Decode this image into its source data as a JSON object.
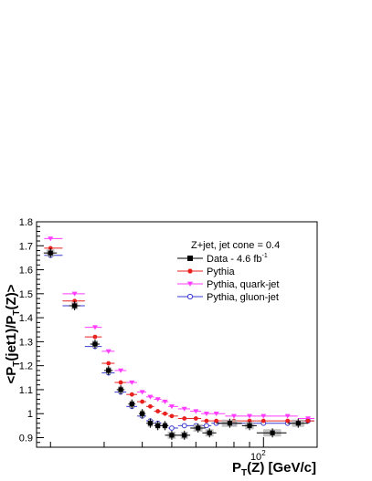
{
  "chart_data": {
    "type": "scatter",
    "xscale": "log",
    "xlim": [
      18,
      150
    ],
    "ylim": [
      0.86,
      1.8
    ],
    "xlabel": "P",
    "xlabel_sub": "T",
    "xlabel_rest": "(Z) [GeV/c]",
    "ylabel": "<P",
    "ylabel_sub1": "T",
    "ylabel_mid": "(jet1)/P",
    "ylabel_sub2": "T",
    "ylabel_rest": "(Z)>",
    "y_ticks": [
      0.9,
      1.0,
      1.1,
      1.2,
      1.3,
      1.4,
      1.5,
      1.6,
      1.7,
      1.8
    ],
    "y_tick_labels": [
      "0.9",
      "1",
      "1.1",
      "1.2",
      "1.3",
      "1.4",
      "1.5",
      "1.6",
      "1.7",
      "1.8"
    ],
    "x_major_ticks": [
      100
    ],
    "x_tick_label_base": "10",
    "x_tick_label_exp": "2",
    "x_minor_ticks": [
      20,
      30,
      40,
      50,
      60,
      70,
      80,
      90
    ],
    "legend": {
      "header": "Z+jet, jet cone = 0.4",
      "placement": "top-right",
      "entries": [
        {
          "label": "Data - 4.6 fb",
          "sup": "-1",
          "marker": "square",
          "color": "#000000"
        },
        {
          "label": "Pythia",
          "marker": "circle",
          "color": "#e8201e"
        },
        {
          "label": "Pythia, quark-jet",
          "marker": "triangle-down",
          "color": "#ff3cff"
        },
        {
          "label": "Pythia, gluon-jet",
          "marker": "open-circle",
          "color": "#3a3ad0"
        }
      ]
    },
    "series": [
      {
        "name": "Data - 4.6 fb-1",
        "x": [
          20,
          24,
          28,
          31,
          34,
          37,
          40,
          42.5,
          45,
          47.5,
          50,
          55,
          61,
          66.5,
          77.5,
          90,
          107,
          130
        ],
        "y": [
          1.67,
          1.45,
          1.29,
          1.18,
          1.1,
          1.04,
          1.0,
          0.96,
          0.95,
          0.95,
          0.91,
          0.91,
          0.94,
          0.92,
          0.96,
          0.95,
          0.92,
          0.96
        ],
        "xerr": [
          1,
          1,
          1,
          1,
          1,
          1,
          1,
          1.25,
          1.25,
          1.25,
          2.5,
          2.5,
          3.5,
          3.5,
          7.5,
          5,
          12,
          10
        ]
      },
      {
        "name": "Pythia",
        "x": [
          20,
          24,
          28,
          31,
          34,
          37,
          40,
          42.5,
          45,
          47.5,
          50,
          55,
          60,
          65,
          70,
          80,
          90,
          100,
          120,
          140
        ],
        "y": [
          1.69,
          1.47,
          1.32,
          1.21,
          1.13,
          1.08,
          1.05,
          1.03,
          1.01,
          1.0,
          0.99,
          0.98,
          0.98,
          0.97,
          0.97,
          0.97,
          0.97,
          0.97,
          0.97,
          0.97
        ]
      },
      {
        "name": "Pythia, quark-jet",
        "x": [
          20,
          24,
          28,
          31,
          34,
          37,
          40,
          42.5,
          45,
          47.5,
          50,
          55,
          60,
          65,
          70,
          80,
          90,
          100,
          120,
          140
        ],
        "y": [
          1.73,
          1.5,
          1.36,
          1.26,
          1.18,
          1.13,
          1.09,
          1.07,
          1.06,
          1.05,
          1.03,
          1.02,
          1.01,
          1.0,
          1.0,
          0.99,
          0.99,
          0.99,
          0.99,
          0.98
        ]
      },
      {
        "name": "Pythia, gluon-jet",
        "x": [
          20,
          24,
          28,
          31,
          34,
          37,
          40,
          42.5,
          45,
          47.5,
          50,
          55,
          60,
          65,
          70,
          80,
          90,
          100,
          120,
          140
        ],
        "y": [
          1.66,
          1.45,
          1.28,
          1.17,
          1.09,
          1.03,
          0.99,
          0.97,
          0.96,
          0.95,
          0.94,
          0.95,
          0.95,
          0.95,
          0.96,
          0.96,
          0.96,
          0.96,
          0.96,
          0.97
        ]
      }
    ]
  }
}
